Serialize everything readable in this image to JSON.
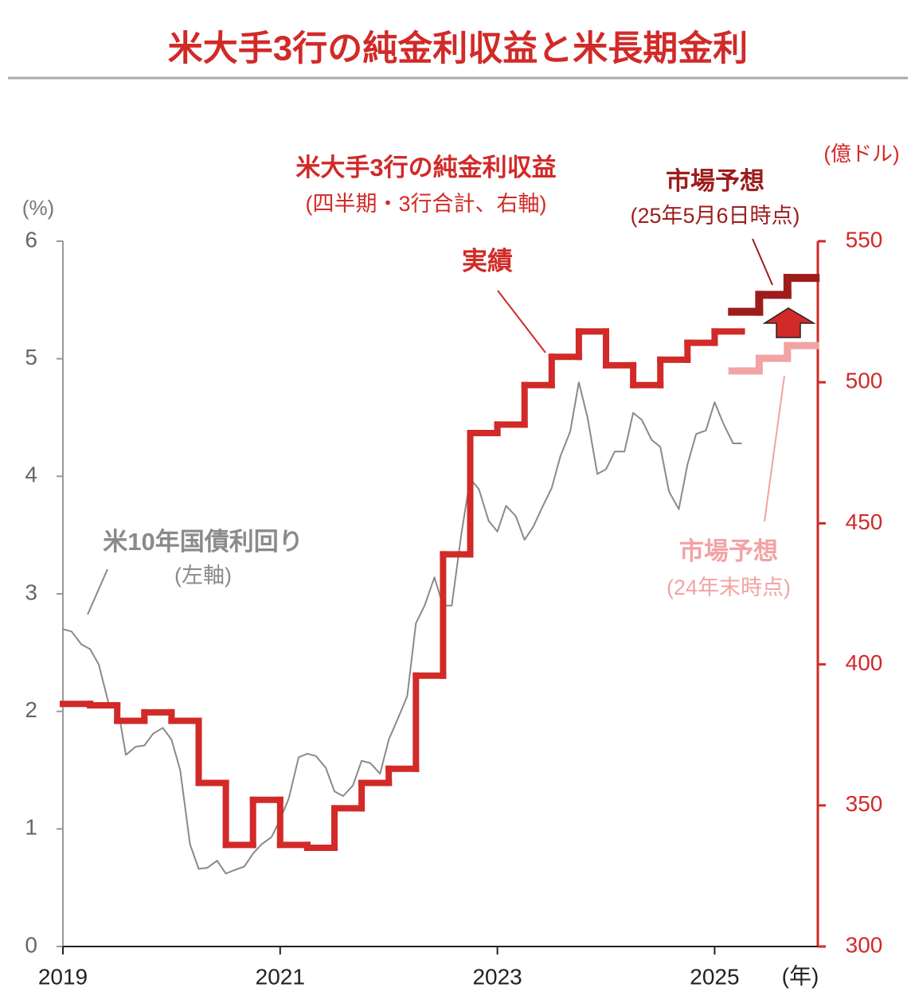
{
  "chart_data": {
    "type": "line",
    "title": "米大手3行の純金利収益と米長期金利",
    "y_unit": "(%)",
    "y2_unit": "(億ドル)",
    "x_unit": "(年)",
    "xlim": [
      2019,
      2025.95
    ],
    "xticks": [
      2019,
      2021,
      2023,
      2025
    ],
    "ylim": [
      0,
      6
    ],
    "yticks": [
      0,
      1,
      2,
      3,
      4,
      5,
      6
    ],
    "y2lim": [
      300,
      550
    ],
    "y2ticks": [
      300,
      350,
      400,
      450,
      500,
      550
    ],
    "annotation": "実績",
    "series": [
      {
        "name": "米10年国債利回り",
        "sublabel": "(左軸)",
        "color": "#8a8a8a",
        "x": [
          2019,
          2019.08,
          2019.17,
          2019.25,
          2019.33,
          2019.42,
          2019.5,
          2019.58,
          2019.67,
          2019.75,
          2019.83,
          2019.92,
          2020,
          2020.08,
          2020.17,
          2020.25,
          2020.33,
          2020.42,
          2020.5,
          2020.58,
          2020.67,
          2020.75,
          2020.83,
          2020.92,
          2021,
          2021.08,
          2021.17,
          2021.25,
          2021.33,
          2021.42,
          2021.5,
          2021.58,
          2021.67,
          2021.75,
          2021.83,
          2021.92,
          2022,
          2022.08,
          2022.17,
          2022.25,
          2022.33,
          2022.42,
          2022.5,
          2022.58,
          2022.67,
          2022.75,
          2022.83,
          2022.92,
          2023,
          2023.08,
          2023.17,
          2023.25,
          2023.33,
          2023.42,
          2023.5,
          2023.58,
          2023.67,
          2023.75,
          2023.83,
          2023.92,
          2024,
          2024.08,
          2024.17,
          2024.25,
          2024.33,
          2024.42,
          2024.5,
          2024.58,
          2024.67,
          2024.75,
          2024.83,
          2024.92,
          2025,
          2025.08,
          2025.17,
          2025.25
        ],
        "values": [
          2.7,
          2.68,
          2.57,
          2.53,
          2.4,
          2.07,
          2.06,
          1.63,
          1.7,
          1.71,
          1.81,
          1.86,
          1.76,
          1.5,
          0.87,
          0.66,
          0.67,
          0.73,
          0.62,
          0.65,
          0.68,
          0.79,
          0.87,
          0.93,
          1.08,
          1.26,
          1.61,
          1.64,
          1.62,
          1.52,
          1.32,
          1.28,
          1.37,
          1.58,
          1.56,
          1.47,
          1.76,
          1.93,
          2.13,
          2.75,
          2.9,
          3.14,
          2.9,
          2.9,
          3.52,
          3.98,
          3.89,
          3.62,
          3.53,
          3.75,
          3.66,
          3.46,
          3.57,
          3.75,
          3.9,
          4.17,
          4.38,
          4.8,
          4.5,
          4.02,
          4.06,
          4.21,
          4.21,
          4.54,
          4.48,
          4.31,
          4.25,
          3.87,
          3.72,
          4.1,
          4.36,
          4.39,
          4.63,
          4.45,
          4.28,
          4.28
        ]
      },
      {
        "name": "米大手3行の純金利収益",
        "sublabel": "(四半期・3行合計、右軸)",
        "color": "#d12a28",
        "axis": "y2",
        "step": true,
        "x": [
          2019,
          2019.25,
          2019.5,
          2019.75,
          2020,
          2020.25,
          2020.5,
          2020.75,
          2021,
          2021.25,
          2021.5,
          2021.75,
          2022,
          2022.25,
          2022.5,
          2022.75,
          2023,
          2023.25,
          2023.5,
          2023.75,
          2024,
          2024.25,
          2024.5,
          2024.75,
          2025
        ],
        "values": [
          386,
          385.5,
          380,
          383,
          380,
          358,
          336,
          352,
          336,
          335,
          349,
          358,
          363,
          396,
          439,
          482,
          485,
          499,
          509,
          518,
          506,
          499,
          508,
          514,
          518
        ]
      },
      {
        "name": "市場予想",
        "sublabel": "(25年5月6日時点)",
        "color": "#9e1c1c",
        "axis": "y2",
        "step": true,
        "x": [
          2025.16,
          2025.42,
          2025.68
        ],
        "values": [
          525,
          531,
          537
        ]
      },
      {
        "name": "市場予想",
        "sublabel": "(24年末時点)",
        "color": "#f2a3a3",
        "axis": "y2",
        "step": true,
        "x": [
          2025.16,
          2025.42,
          2025.68
        ],
        "values": [
          504,
          508.5,
          513
        ]
      }
    ]
  }
}
